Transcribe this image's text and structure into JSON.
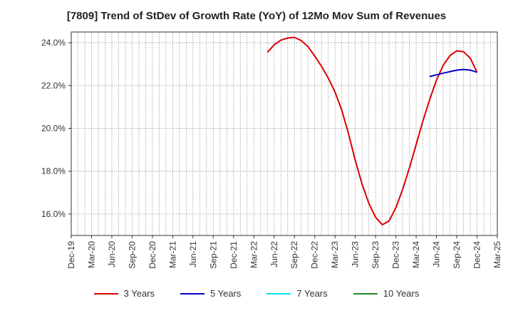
{
  "chart_data": {
    "type": "line",
    "title": "[7809]  Trend of StDev of Growth Rate (YoY) of 12Mo Mov Sum of Revenues",
    "xlabel": "",
    "ylabel": "",
    "x_tick_labels": [
      "Dec-19",
      "Mar-20",
      "Jun-20",
      "Sep-20",
      "Dec-20",
      "Mar-21",
      "Jun-21",
      "Sep-21",
      "Dec-21",
      "Mar-22",
      "Jun-22",
      "Sep-22",
      "Dec-22",
      "Mar-23",
      "Jun-23",
      "Sep-23",
      "Dec-23",
      "Mar-24",
      "Jun-24",
      "Sep-24",
      "Dec-24",
      "Mar-25"
    ],
    "y_ticks": [
      16,
      18,
      20,
      22,
      24
    ],
    "y_tick_labels": [
      "16.0%",
      "18.0%",
      "20.0%",
      "22.0%",
      "24.0%"
    ],
    "ylim": [
      15.0,
      24.5
    ],
    "grid": true,
    "legend_position": "bottom",
    "series": [
      {
        "name": "3 Years",
        "color": "#dd0000",
        "points": [
          [
            29,
            23.55
          ],
          [
            30,
            23.9
          ],
          [
            31,
            24.12
          ],
          [
            32,
            24.22
          ],
          [
            33,
            24.25
          ],
          [
            34,
            24.1
          ],
          [
            35,
            23.82
          ],
          [
            36,
            23.38
          ],
          [
            37,
            22.9
          ],
          [
            38,
            22.35
          ],
          [
            39,
            21.7
          ],
          [
            40,
            20.85
          ],
          [
            41,
            19.75
          ],
          [
            42,
            18.5
          ],
          [
            43,
            17.4
          ],
          [
            44,
            16.5
          ],
          [
            45,
            15.85
          ],
          [
            46,
            15.5
          ],
          [
            47,
            15.68
          ],
          [
            48,
            16.3
          ],
          [
            49,
            17.15
          ],
          [
            50,
            18.15
          ],
          [
            51,
            19.25
          ],
          [
            52,
            20.35
          ],
          [
            53,
            21.35
          ],
          [
            54,
            22.25
          ],
          [
            55,
            22.95
          ],
          [
            56,
            23.4
          ],
          [
            57,
            23.62
          ],
          [
            58,
            23.58
          ],
          [
            59,
            23.28
          ],
          [
            60,
            22.62
          ]
        ]
      },
      {
        "name": "5 Years",
        "color": "#0000cc",
        "points": [
          [
            53,
            22.42
          ],
          [
            54,
            22.5
          ],
          [
            55,
            22.58
          ],
          [
            56,
            22.65
          ],
          [
            57,
            22.72
          ],
          [
            58,
            22.75
          ],
          [
            59,
            22.72
          ],
          [
            60,
            22.62
          ]
        ]
      },
      {
        "name": "7 Years",
        "color": "#00e5ee",
        "points": []
      },
      {
        "name": "10 Years",
        "color": "#228b22",
        "points": []
      }
    ]
  }
}
